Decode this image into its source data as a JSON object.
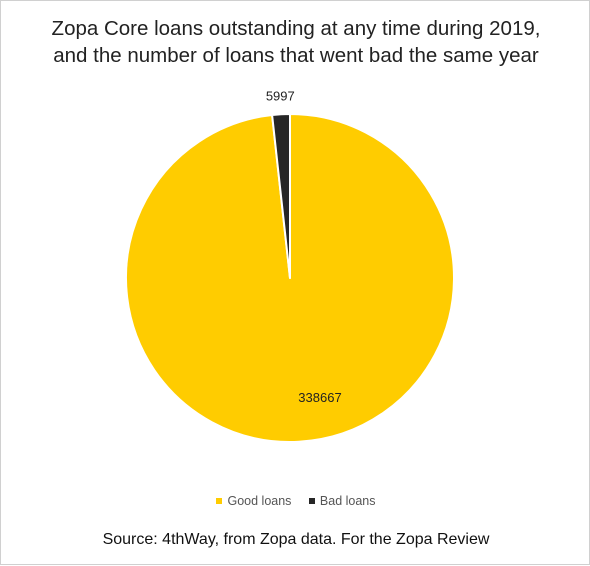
{
  "chart_data": {
    "type": "pie",
    "title": [
      "Zopa Core loans outstanding at any time during 2019,",
      "and the number of loans that went bad the same year"
    ],
    "slices": [
      {
        "label": "Good loans",
        "value": 338667,
        "color": "#FFCC00"
      },
      {
        "label": "Bad loans",
        "value": 5997,
        "color": "#262626"
      }
    ],
    "data_labels": [
      "338667",
      "5997"
    ],
    "legend_position": "bottom",
    "source": "Source: 4thWay, from Zopa data. For the Zopa Review"
  }
}
